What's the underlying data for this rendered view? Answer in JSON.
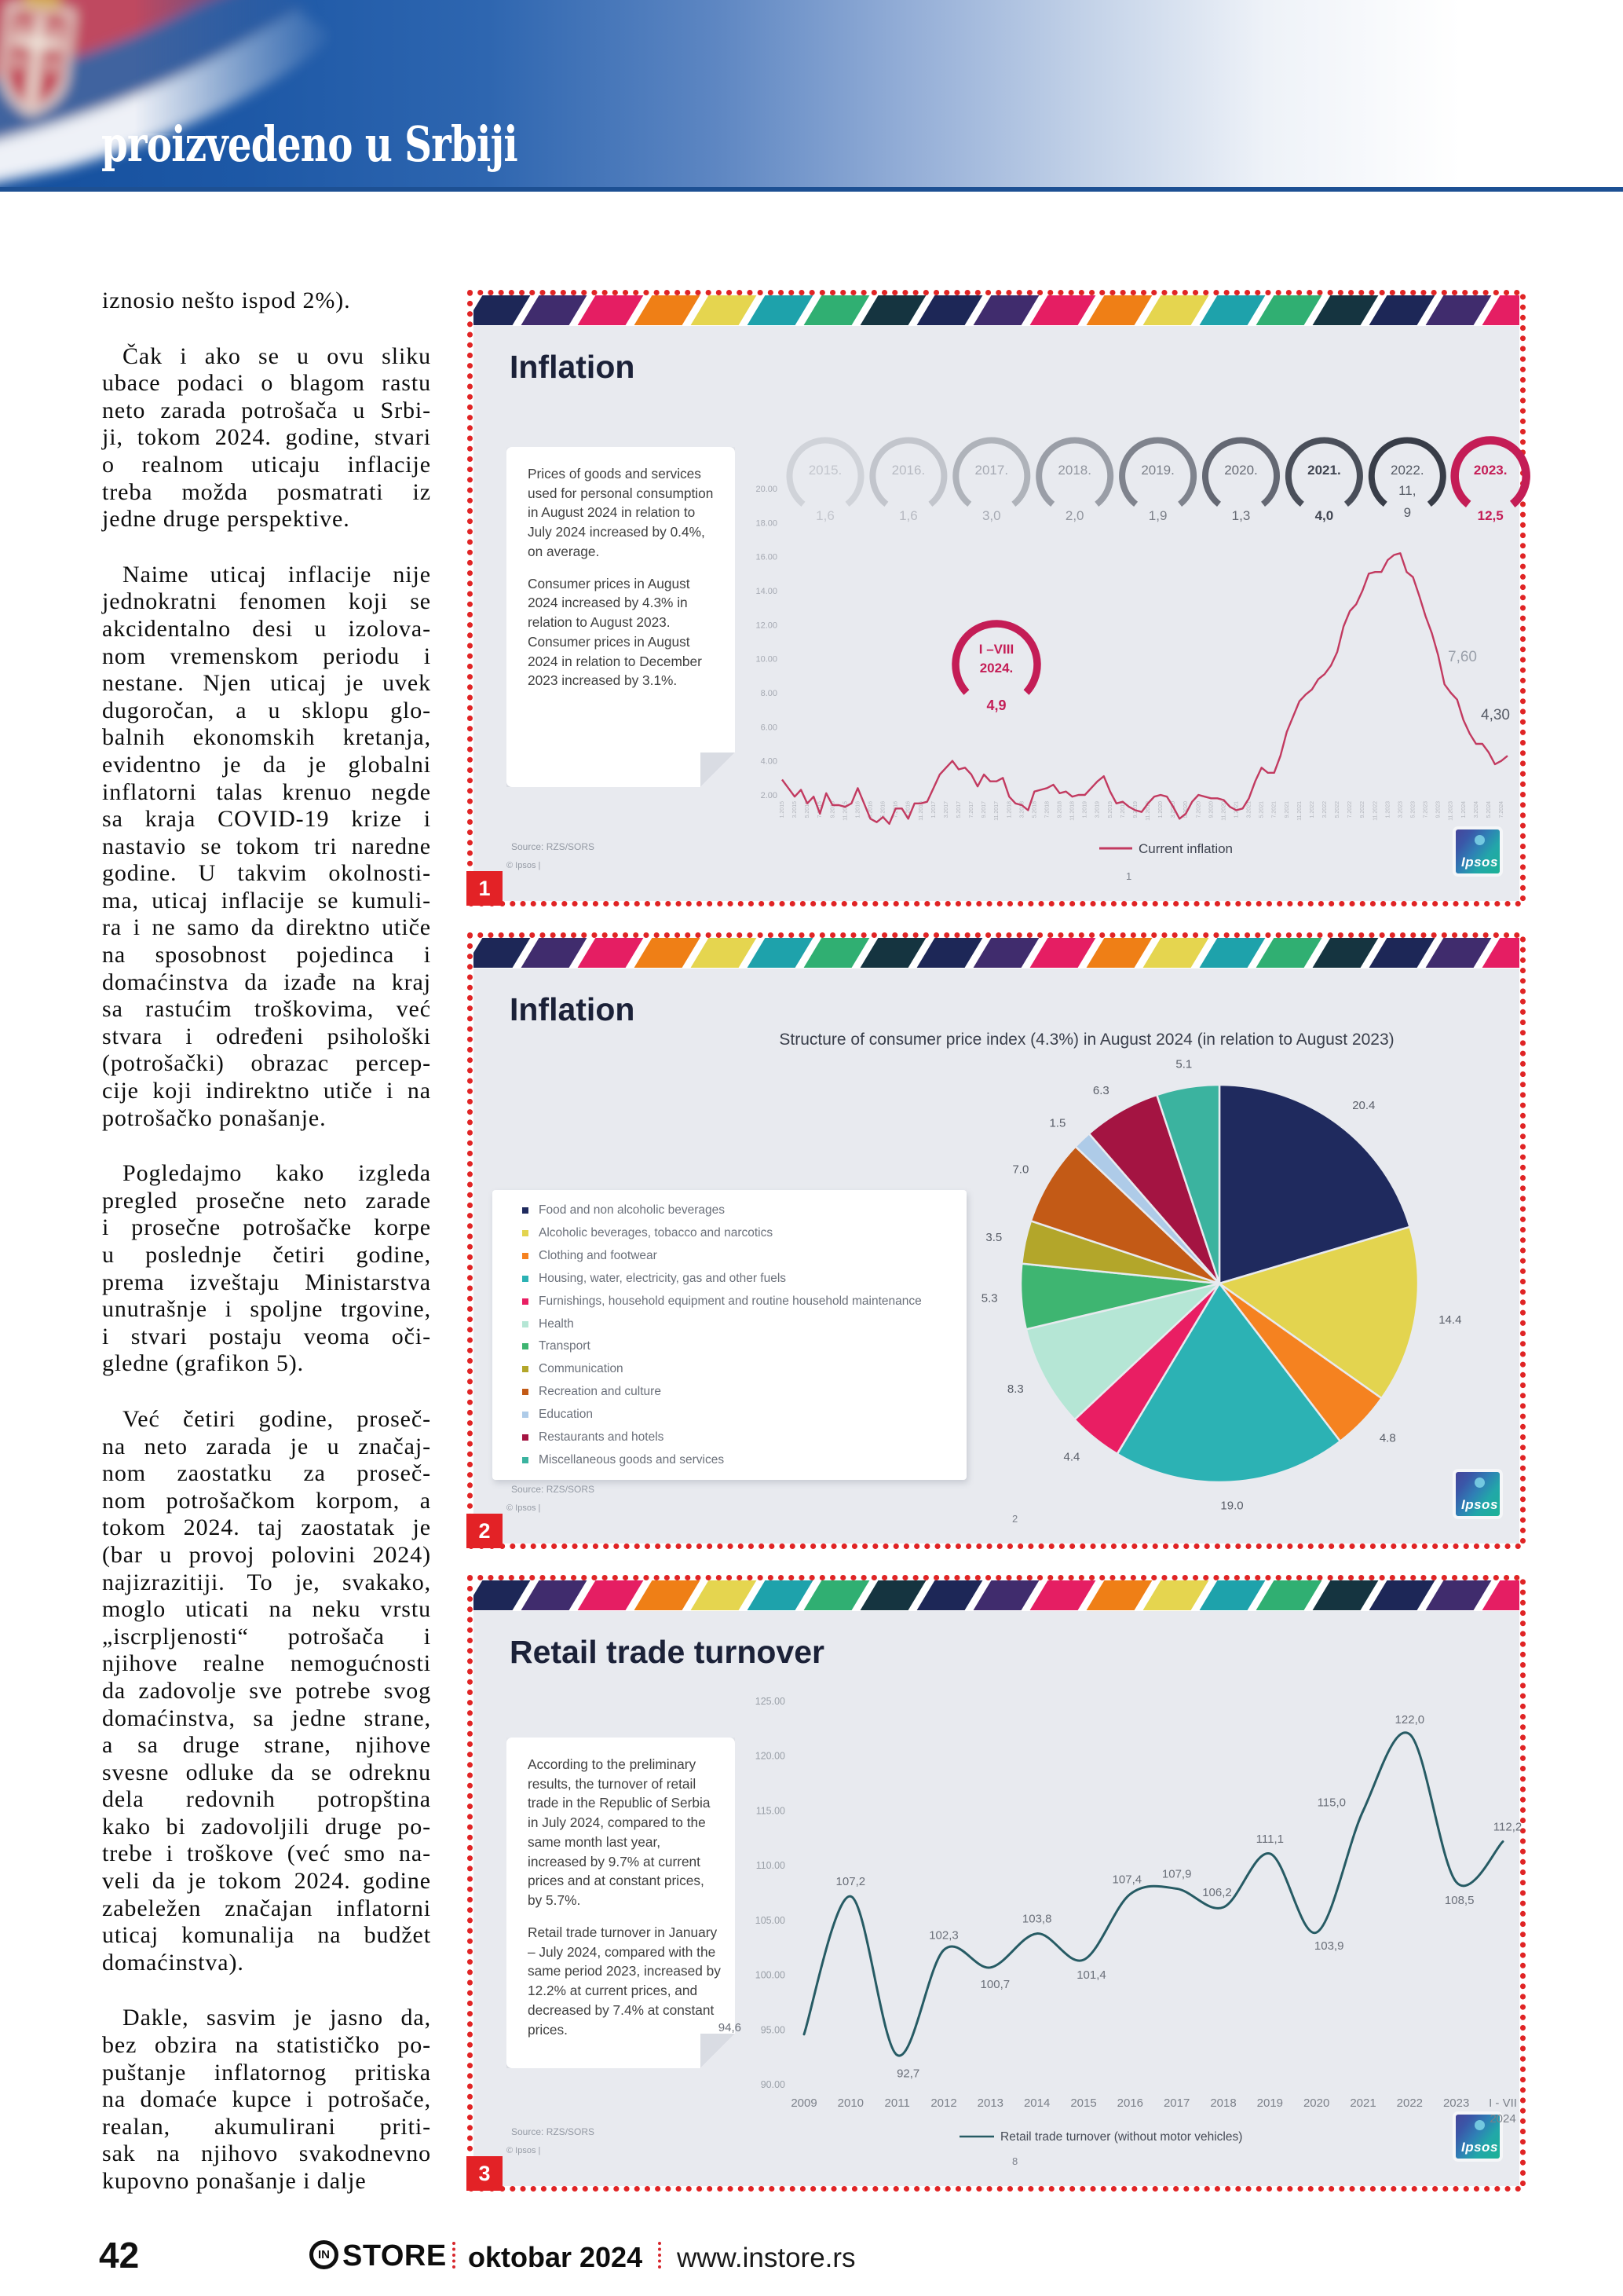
{
  "header": {
    "title": "proizvedeno u Srbiji"
  },
  "article": {
    "paragraphs": [
      {
        "indent": false,
        "lines": [
          "iznosio nešto ispod 2%)."
        ]
      },
      {
        "indent": true,
        "lines": [
          "Čak i ako se u ovu sliku",
          "ubace podaci o blagom rastu",
          "neto zarada potrošača u Srbi-",
          "ji, tokom 2024. godine, stvari",
          "o realnom uticaju inflacije",
          "treba možda posmatrati iz",
          "jedne druge perspektive."
        ]
      },
      {
        "indent": true,
        "lines": [
          "Naime uticaj inflacije nije",
          "jednokratni fenomen koji se",
          "akcidentalno desi u izolova-",
          "nom vremenskom periodu i",
          "nestane. Njen uticaj je uvek",
          "dugoročan, a u sklopu glo-",
          "balnih ekonomskih kretanja,",
          "evidentno je da je globalni",
          "inflatorni talas krenuo negde",
          "sa kraja COVID-19 krize i",
          "nastavio se tokom tri naredne",
          "godine. U takvim okolnosti-",
          "ma, uticaj inflacije se kumuli-",
          "ra i ne samo da direktno utiče",
          "na sposobnost pojedinca i",
          "domaćinstva da izađe na kraj",
          "sa rastućim troškovima, već",
          "stvara i određeni psihološki",
          "(potrošački) obrazac percep-",
          "cije koji indirektno utiče i na",
          "potrošačko ponašanje."
        ]
      },
      {
        "indent": true,
        "lines": [
          "Pogledajmo kako izgleda",
          "pregled prosečne neto zarade",
          "i prosečne potrošačke korpe",
          "u poslednje četiri godine,",
          "prema izveštaju Ministarstva",
          "unutrašnje i spoljne trgovine,",
          "i stvari postaju veoma oči-",
          "gledne (grafikon 5)."
        ]
      },
      {
        "indent": true,
        "lines": [
          "Već četiri godine, proseč-",
          "na neto zarada je u značaj-",
          "nom zaostatku za proseč-",
          "nom potrošačkom korpom, a",
          "tokom 2024. taj zaostatak je",
          "(bar u provoj polovini 2024)",
          "najizrazitiji. To je, svakako,",
          "moglo uticati na neku vrstu",
          "„iscrpljenosti“ potrošača i",
          "njihove realne nemogućnosti",
          "da zadovolje sve potrebe svog",
          "domaćinstva, sa jedne strane,",
          "a sa druge strane, njihove",
          "svesne odluke da se odreknu",
          "dela redovnih potropština",
          "kako bi zadovoljili druge po-",
          "trebe i troškove (već smo na-",
          "veli da je tokom 2024. godine",
          "zabeležen značajan inflatorni",
          "uticaj komunalija na budžet",
          "domaćinstva)."
        ]
      },
      {
        "indent": true,
        "lines": [
          "Dakle, sasvim je jasno da,",
          "bez obzira na statističko po-",
          "puštanje inflatornog pritiska",
          "na domaće kupce i potrošače,",
          "realan, akumulirani priti-",
          "sak na njihovo svakodnevno",
          "kupovno ponašanje i dalje"
        ]
      }
    ]
  },
  "strip_palette": [
    "#1d2757",
    "#402c6d",
    "#e51e63",
    "#ef7f16",
    "#e5d54f",
    "#1ea2ab",
    "#30af72",
    "#153440"
  ],
  "slides": [
    {
      "badge": "1",
      "title": "Inflation",
      "note_paragraphs": [
        "Prices of goods and services used for personal consumption in August 2024 in relation to July  2024 increased by 0.4%, on average.",
        "Consumer prices in August 2024 increased by 4.3% in relation to August 2023. Consumer prices in August 2024 in relation to December 2023 increased by 3.1%."
      ],
      "source_line1": "Source: RZS/SORS",
      "source_line2": "© Ipsos |",
      "page_number": "1",
      "logo_text": "Ipsos"
    },
    {
      "badge": "2",
      "title": "Inflation",
      "subtitle": "Structure of consumer price index (4.3%) in August 2024 (in relation to August 2023)",
      "source_line1": "Source: RZS/SORS",
      "source_line2": "© Ipsos |",
      "page_number": "2",
      "logo_text": "Ipsos"
    },
    {
      "badge": "3",
      "title": "Retail trade turnover",
      "note_paragraphs": [
        "According to the preliminary results, the turnover of retail trade in the Republic of Serbia in July 2024, compared to the same month last year, increased by 9.7% at current prices and at constant prices, by 5.7%.",
        "Retail trade turnover in January – July 2024, compared with the same period 2023, increased by 12.2% at current prices, and decreased by 7.4% at constant prices."
      ],
      "source_line1": "Source: RZS/SORS",
      "source_line2": "© Ipsos |",
      "page_number": "8",
      "logo_text": "Ipsos"
    }
  ],
  "chart_data": [
    {
      "type": "line",
      "title": "Inflation",
      "legend": "Current inflation",
      "line_color": "#c23a60",
      "x_start": "2015-01",
      "x_end": "2024-08",
      "ylim": [
        2,
        20
      ],
      "ytick_labels": [
        "20.00",
        "18.00",
        "16.00",
        "14.00",
        "12.00",
        "10.00",
        "8.00",
        "6.00",
        "4.00",
        "2.00"
      ],
      "values": [
        2.9,
        2.4,
        1.9,
        2.3,
        1.5,
        1.9,
        0.9,
        2.1,
        1.4,
        1.4,
        1.3,
        1.5,
        2.4,
        1.5,
        0.6,
        0.4,
        0.7,
        0.3,
        1.2,
        1.2,
        0.6,
        1.5,
        1.5,
        1.6,
        2.4,
        3.2,
        3.6,
        4.0,
        3.5,
        3.6,
        3.2,
        2.5,
        3.2,
        2.8,
        2.8,
        3.0,
        1.9,
        1.5,
        1.4,
        1.1,
        2.2,
        2.3,
        2.4,
        2.6,
        2.1,
        2.2,
        1.9,
        2.0,
        2.0,
        2.4,
        2.8,
        3.1,
        2.2,
        1.5,
        1.6,
        1.3,
        1.1,
        1.0,
        1.5,
        1.9,
        2.0,
        1.9,
        1.3,
        0.6,
        0.9,
        1.6,
        2.0,
        1.9,
        1.8,
        1.8,
        1.7,
        1.3,
        1.1,
        1.2,
        1.8,
        2.8,
        3.6,
        3.3,
        3.3,
        4.3,
        5.7,
        6.6,
        7.5,
        7.9,
        8.2,
        8.8,
        9.1,
        9.6,
        10.4,
        11.9,
        12.8,
        13.2,
        14.0,
        15.0,
        15.1,
        15.1,
        15.8,
        16.1,
        16.2,
        15.1,
        14.8,
        13.7,
        12.5,
        11.5,
        10.2,
        8.5,
        8.0,
        7.6,
        6.4,
        5.6,
        5.0,
        5.0,
        4.5,
        3.8,
        4.0,
        4.3
      ],
      "annotations": [
        {
          "text": "7,60"
        },
        {
          "text": "4,30"
        }
      ],
      "year_rings": [
        {
          "year": "2015.",
          "value": "1,6",
          "ring": "#d0d3d9",
          "text": "#c3c6cd",
          "bold": false
        },
        {
          "year": "2016.",
          "value": "1,6",
          "ring": "#c2c5cc",
          "text": "#b7bac2",
          "bold": false
        },
        {
          "year": "2017.",
          "value": "3,0",
          "ring": "#afb3ba",
          "text": "#a6aab3",
          "bold": false
        },
        {
          "year": "2018.",
          "value": "2,0",
          "ring": "#9a9ea7",
          "text": "#92969f",
          "bold": false
        },
        {
          "year": "2019.",
          "value": "1,9",
          "ring": "#7f838d",
          "text": "#7c8089",
          "bold": false
        },
        {
          "year": "2020.",
          "value": "1,3",
          "ring": "#646873",
          "text": "#666a74",
          "bold": false
        },
        {
          "year": "2021.",
          "value": "4,0",
          "ring": "#4a4f5a",
          "text": "#3f4450",
          "bold": true
        },
        {
          "year": "2022.",
          "value": "11,",
          "value2": "9",
          "ring": "#383d48",
          "text": "#555a64",
          "bold": false
        },
        {
          "year": "2023.",
          "value": "12,5",
          "ring": "#c41d56",
          "text": "#c41d56",
          "bold": true
        }
      ],
      "period_ring": {
        "line1": "I –VIII",
        "line2": "2024.",
        "value": "4,9",
        "color": "#c41d56"
      }
    },
    {
      "type": "pie",
      "title": "Structure of consumer price index (4.3%) in August 2024 (in relation to August 2023)",
      "slices": [
        {
          "label": "20.4",
          "value": 20.4,
          "color": "#1f2a5e",
          "legend": "Food and non alcoholic beverages"
        },
        {
          "label": "14.4",
          "value": 14.4,
          "color": "#e3d44f",
          "legend": "Alcoholic beverages, tobacco and narcotics"
        },
        {
          "label": "4.8",
          "value": 4.8,
          "color": "#f58220",
          "legend": "Clothing and footwear"
        },
        {
          "label": "19.0",
          "value": 19.0,
          "color": "#2cb2b4",
          "legend": "Housing, water, electricity, gas and other fuels"
        },
        {
          "label": "4.4",
          "value": 4.4,
          "color": "#e91e63",
          "legend": "Furnishings, household equipment and routine household maintenance"
        },
        {
          "label": "8.3",
          "value": 8.3,
          "color": "#b5e6d5",
          "legend": "Health"
        },
        {
          "label": "5.3",
          "value": 5.3,
          "color": "#3eb571",
          "legend": "Transport"
        },
        {
          "label": "3.5",
          "value": 3.5,
          "color": "#b3a62a",
          "legend": "Communication"
        },
        {
          "label": "7.0",
          "value": 7.0,
          "color": "#c35a16",
          "legend": "Recreation and culture"
        },
        {
          "label": "1.5",
          "value": 1.5,
          "color": "#aecbe8",
          "legend": "Education"
        },
        {
          "label": "6.3",
          "value": 6.3,
          "color": "#a41442",
          "legend": "Restaurants and hotels"
        },
        {
          "label": "5.1",
          "value": 5.1,
          "color": "#3bb39f",
          "legend": "Miscellaneous goods and services"
        }
      ]
    },
    {
      "type": "line",
      "title": "Retail trade turnover",
      "legend": "Retail trade turnover (without motor vehicles)",
      "line_color": "#265b64",
      "categories": [
        "2009",
        "2010",
        "2011",
        "2012",
        "2013",
        "2014",
        "2015",
        "2016",
        "2017",
        "2018",
        "2019",
        "2020",
        "2021",
        "2022",
        "2023",
        "I - VII"
      ],
      "last_category_line2": "2024",
      "ylim": [
        90,
        125
      ],
      "ytick_labels": [
        "125.00",
        "120.00",
        "115.00",
        "110.00",
        "105.00",
        "100.00",
        "95.00",
        "90.00"
      ],
      "values": [
        94.6,
        107.2,
        92.7,
        102.3,
        100.7,
        103.8,
        101.4,
        107.4,
        107.9,
        106.2,
        111.1,
        103.9,
        115.0,
        122.0,
        108.5,
        112.2
      ],
      "point_labels": [
        "94,6",
        "107,2",
        "92,7",
        "102,3",
        "100,7",
        "103,8",
        "101,4",
        "107,4",
        "107,9",
        "106,2",
        "111,1",
        "103,9",
        "115,0",
        "122,0",
        "108,5",
        "112,2"
      ]
    }
  ],
  "footer": {
    "page_number": "42",
    "brand_icon": "IN",
    "brand": "STORE",
    "issue": "oktobar 2024",
    "site": "www.instore.rs"
  },
  "colors": {
    "accent_red": "#e32226",
    "dotted_border": "#e02425",
    "masthead_blue": "#1d58a6",
    "slide_bg": "#e8eaef",
    "inflation_line": "#c23a60",
    "retail_line": "#265b64",
    "ring_highlight": "#c41d56"
  }
}
